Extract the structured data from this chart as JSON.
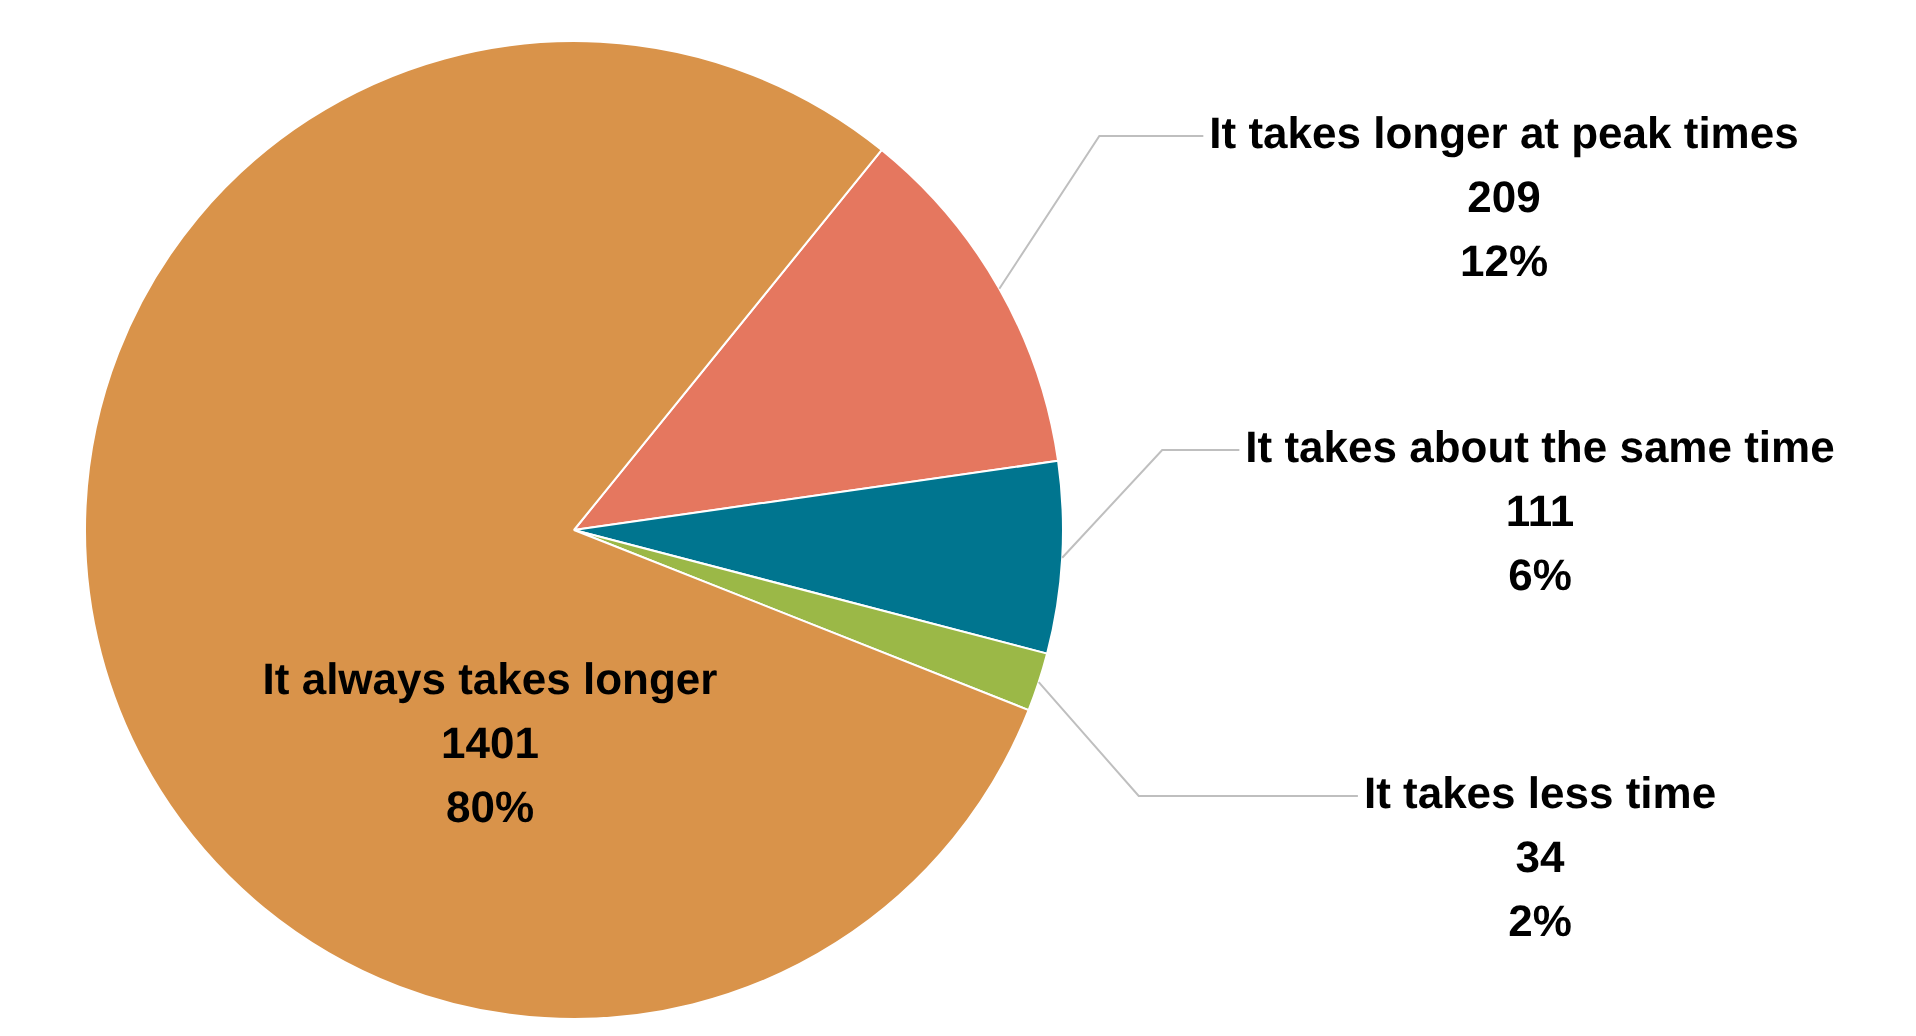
{
  "chart_data": {
    "type": "pie",
    "categories": [
      "It takes longer at peak times",
      "It takes about the same time",
      "It takes less time",
      "It always takes longer"
    ],
    "values": [
      209,
      111,
      34,
      1401
    ],
    "colors": [
      "#e5775f",
      "#00758f",
      "#9bb847",
      "#d9934a"
    ],
    "value_labels": [
      "209\n12%",
      "111\n6%",
      "34\n2%",
      "1401\n80%"
    ],
    "legend": false
  }
}
